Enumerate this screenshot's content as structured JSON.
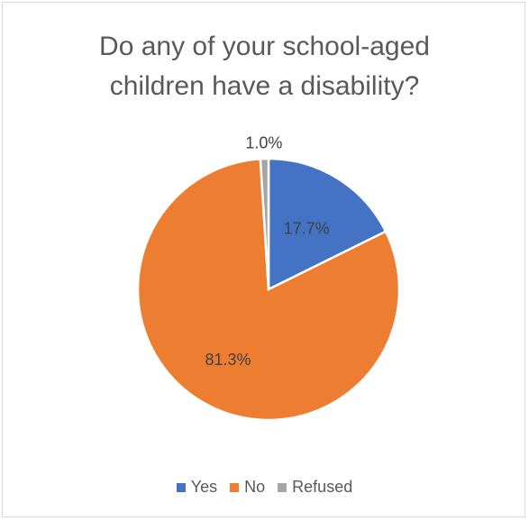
{
  "chart_data": {
    "type": "pie",
    "title_lines": [
      "Do any of your school-aged",
      "children have a disability?"
    ],
    "categories": [
      "Yes",
      "No",
      "Refused"
    ],
    "values": [
      17.7,
      81.3,
      1.0
    ],
    "data_labels": [
      "17.7%",
      "81.3%",
      "1.0%"
    ],
    "colors": [
      "#4472c4",
      "#ed7d31",
      "#a5a5a5"
    ],
    "legend_position": "bottom",
    "start_angle": "12 o'clock",
    "direction": "clockwise"
  }
}
